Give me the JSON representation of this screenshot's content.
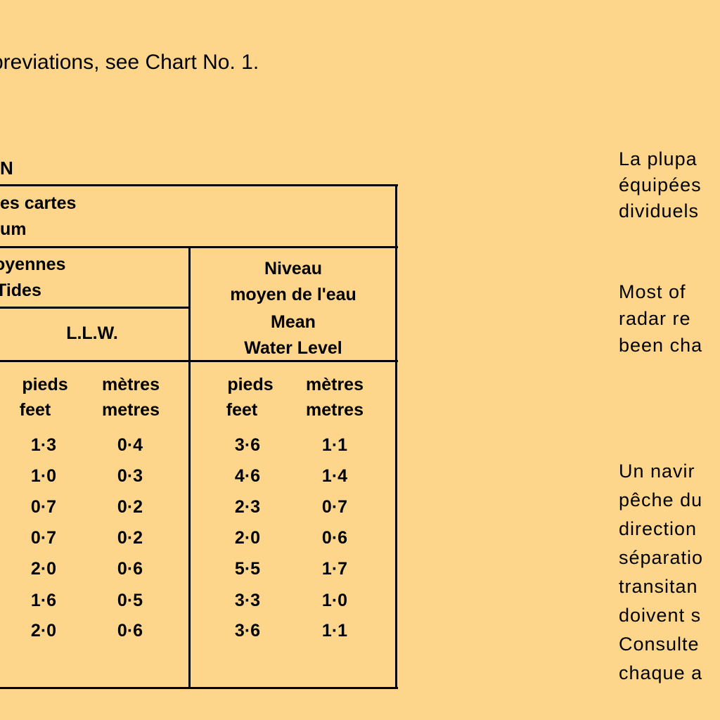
{
  "abbreviations_note": "breviations, see Chart No. 1.",
  "left_heading": "N",
  "table": {
    "header_top": [
      "es cartes",
      "um"
    ],
    "header_tides": [
      "oyennes",
      "Tides"
    ],
    "llw_label": "L.L.W.",
    "mwl_label": [
      "Niveau",
      "moyen de l'eau",
      "Mean",
      "Water Level"
    ],
    "col_heads": {
      "llw_feet": [
        "pieds",
        "feet"
      ],
      "llw_metres": [
        "mètres",
        "metres"
      ],
      "mwl_feet": [
        "pieds",
        "feet"
      ],
      "mwl_metres": [
        "mètres",
        "metres"
      ]
    },
    "rows": [
      {
        "llw_feet": "1·3",
        "llw_metres": "0·4",
        "mwl_feet": "3·6",
        "mwl_metres": "1·1"
      },
      {
        "llw_feet": "1·0",
        "llw_metres": "0·3",
        "mwl_feet": "4·6",
        "mwl_metres": "1·4"
      },
      {
        "llw_feet": "0·7",
        "llw_metres": "0·2",
        "mwl_feet": "2·3",
        "mwl_metres": "0·7"
      },
      {
        "llw_feet": "0·7",
        "llw_metres": "0·2",
        "mwl_feet": "2·0",
        "mwl_metres": "0·6"
      },
      {
        "llw_feet": "2·0",
        "llw_metres": "0·6",
        "mwl_feet": "5·5",
        "mwl_metres": "1·7"
      },
      {
        "llw_feet": "1·6",
        "llw_metres": "0·5",
        "mwl_feet": "3·3",
        "mwl_metres": "1·0"
      },
      {
        "llw_feet": "2·0",
        "llw_metres": "0·6",
        "mwl_feet": "3·6",
        "mwl_metres": "1·1"
      }
    ]
  },
  "right_column": {
    "para1": [
      "La plupa",
      "équipées",
      "dividuels"
    ],
    "para2": [
      "Most of",
      "radar re",
      "been cha"
    ],
    "para3": [
      "Un navir",
      "pêche du",
      "direction",
      "séparatio",
      "transitan",
      "doivent s",
      "Consulte",
      "chaque a"
    ]
  }
}
